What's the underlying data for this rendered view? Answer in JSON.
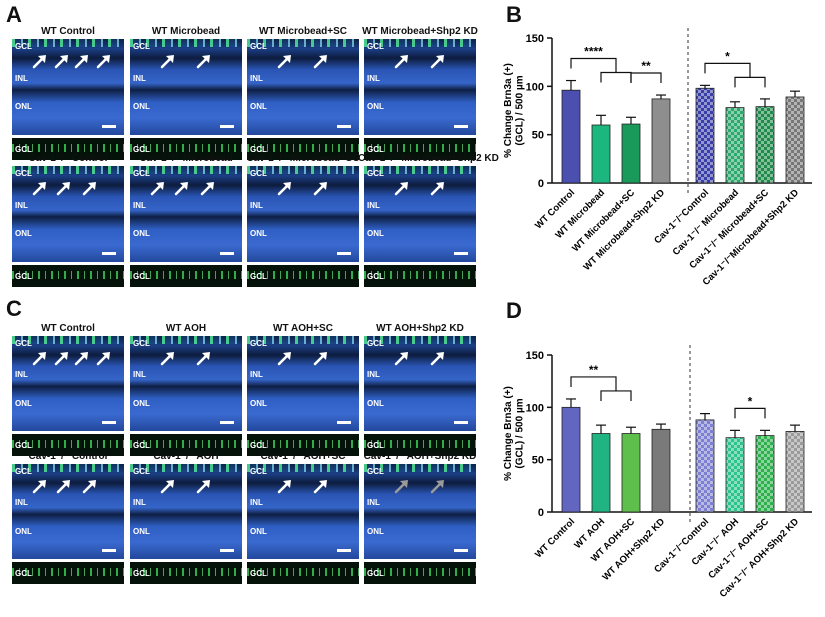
{
  "panels": {
    "a": "A",
    "b": "B",
    "c": "C",
    "d": "D"
  },
  "layers": {
    "gcl": "GCL",
    "inl": "INL",
    "onl": "ONL"
  },
  "panelA": {
    "captions": [
      "WT Control",
      "WT Microbead",
      "WT Microbead+SC",
      "WT Microbead+Shp2 KD",
      "Cav-1⁻/⁻ Control",
      "Cav-1⁻/⁻ Microbead",
      "Cav-1⁻/⁻ Microbead+SC",
      "Cav-1⁻/⁻ Microbead+Shp2 KD"
    ]
  },
  "panelC": {
    "captions": [
      "WT Control",
      "WT AOH",
      "WT AOH+SC",
      "WT AOH+Shp2 KD",
      "Cav-1⁻/⁻ Control",
      "Cav-1⁻/⁻ AOH",
      "Cav-1⁻/⁻ AOH+SC",
      "Cav-1⁻/⁻ AOH+Shp2 KD"
    ]
  },
  "chart_data": [
    {
      "panel": "B",
      "type": "bar",
      "ylabel": "% Change Brn3a (+) (GCL) / 500 µm",
      "ylim": [
        0,
        150
      ],
      "yticks": [
        0,
        50,
        100,
        150
      ],
      "categories": [
        "WT Control",
        "WT Microbead",
        "WT Microbead+SC",
        "WT Microbead+Shp2 KD",
        "Cav-1⁻/⁻Control",
        "Cav-1⁻/⁻ Microbead",
        "Cav-1⁻/⁻ Microbead+SC",
        "Cav-1⁻/⁻Microbead+Shp2 KD"
      ],
      "values": [
        96,
        60,
        61,
        87,
        98,
        78,
        79,
        89
      ],
      "errors": [
        10,
        10,
        7,
        4,
        3,
        6,
        8,
        6
      ],
      "colors": [
        "#4a4fb0",
        "#1cb77e",
        "#1a9a5a",
        "#8e8e8e",
        "#3a3fa8",
        "#2ba86b",
        "#1f8a4a",
        "#777777"
      ],
      "hatched": [
        false,
        false,
        false,
        false,
        true,
        true,
        true,
        true
      ],
      "significance": [
        {
          "from": 0,
          "to": 1,
          "to2": 2,
          "label": "****"
        },
        {
          "from": 2,
          "to": 3,
          "label": "**"
        },
        {
          "from": 4,
          "to": 5,
          "to2": 6,
          "label": "*"
        }
      ]
    },
    {
      "panel": "D",
      "type": "bar",
      "ylabel": "% Change Brn3a (+) (GCL) / 500 µm",
      "ylim": [
        0,
        150
      ],
      "yticks": [
        0,
        50,
        100,
        150
      ],
      "categories": [
        "WT Control",
        "WT AOH",
        "WT AOH+SC",
        "WT AOH+Shp2 KD",
        "Cav-1⁻/⁻Control",
        "Cav-1⁻/⁻ AOH",
        "Cav-1⁻/⁻ AOH+SC",
        "Cav-1⁻/⁻ AOH+Shp2 KD"
      ],
      "values": [
        100,
        75,
        75,
        79,
        88,
        71,
        73,
        77
      ],
      "errors": [
        8,
        8,
        6,
        5,
        6,
        7,
        5,
        6
      ],
      "colors": [
        "#6366c0",
        "#1fb481",
        "#5fbf4c",
        "#7a7a7a",
        "#7d80d0",
        "#2bc48e",
        "#2db14d",
        "#9a9a9a"
      ],
      "hatched": [
        false,
        false,
        false,
        false,
        true,
        true,
        true,
        true
      ],
      "significance": [
        {
          "from": 0,
          "to": 1,
          "to2": 2,
          "label": "**"
        },
        {
          "from": 5,
          "to": 6,
          "label": "*"
        }
      ]
    }
  ]
}
